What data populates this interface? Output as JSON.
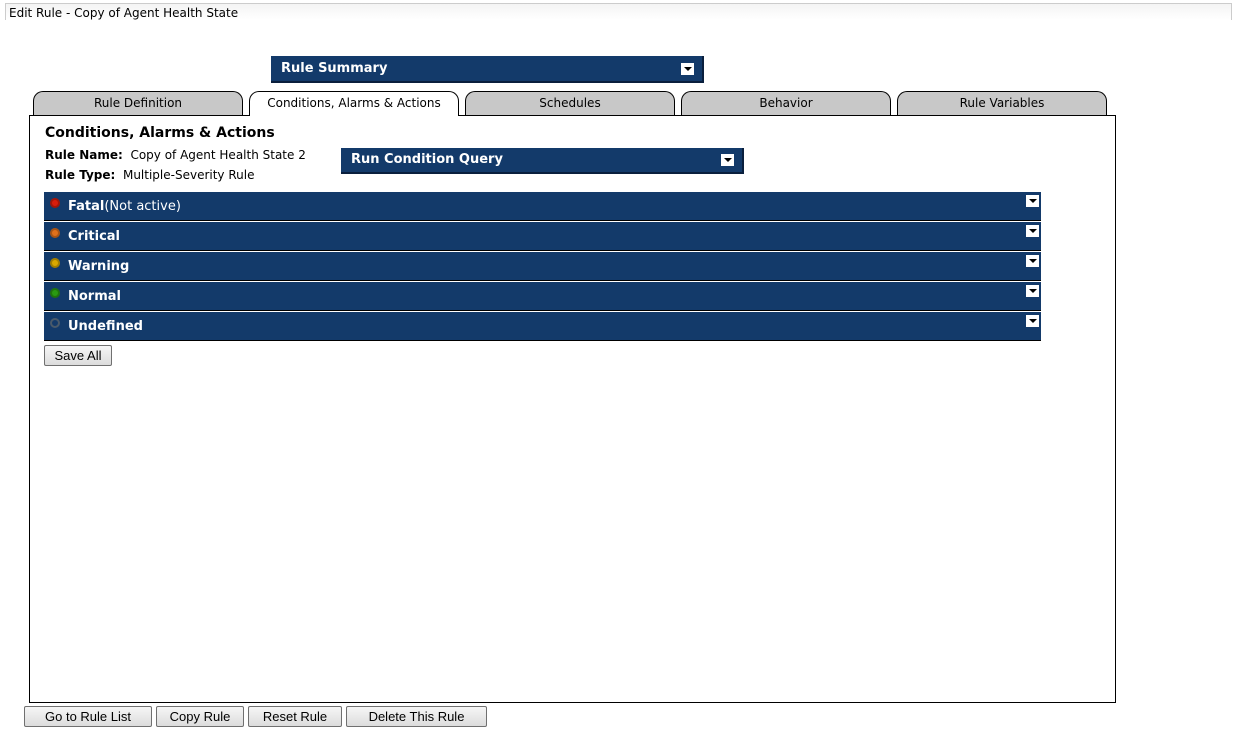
{
  "window": {
    "title": "Edit Rule - Copy of Agent Health State"
  },
  "rule_summary": {
    "label": "Rule Summary",
    "icon": "chevron-down-icon"
  },
  "tabs": [
    {
      "label": "Rule Definition"
    },
    {
      "label": "Conditions, Alarms & Actions",
      "active": true
    },
    {
      "label": "Schedules"
    },
    {
      "label": "Behavior"
    },
    {
      "label": "Rule Variables"
    }
  ],
  "content": {
    "heading": "Conditions, Alarms & Actions",
    "rule_name_label": "Rule Name:",
    "rule_name": "Copy of Agent Health State 2",
    "rule_type_label": "Rule Type:",
    "rule_type": "Multiple-Severity Rule",
    "run_query_label": "Run Condition Query",
    "severities": [
      {
        "label": "Fatal",
        "note": "(Not active)",
        "color": "#d81d0c"
      },
      {
        "label": "Critical",
        "note": "",
        "color": "#e0711c"
      },
      {
        "label": "Warning",
        "note": "",
        "color": "#d9a800"
      },
      {
        "label": "Normal",
        "note": "",
        "color": "#2a9a12"
      },
      {
        "label": "Undefined",
        "note": "",
        "color": "#4a5a6a"
      }
    ],
    "save_all": "Save All"
  },
  "footer": {
    "buttons": [
      "Go to Rule List",
      "Copy Rule",
      "Reset Rule",
      "Delete This Rule"
    ]
  },
  "colors": {
    "bar": "#133a6a",
    "tab": "#c8c8c8"
  }
}
